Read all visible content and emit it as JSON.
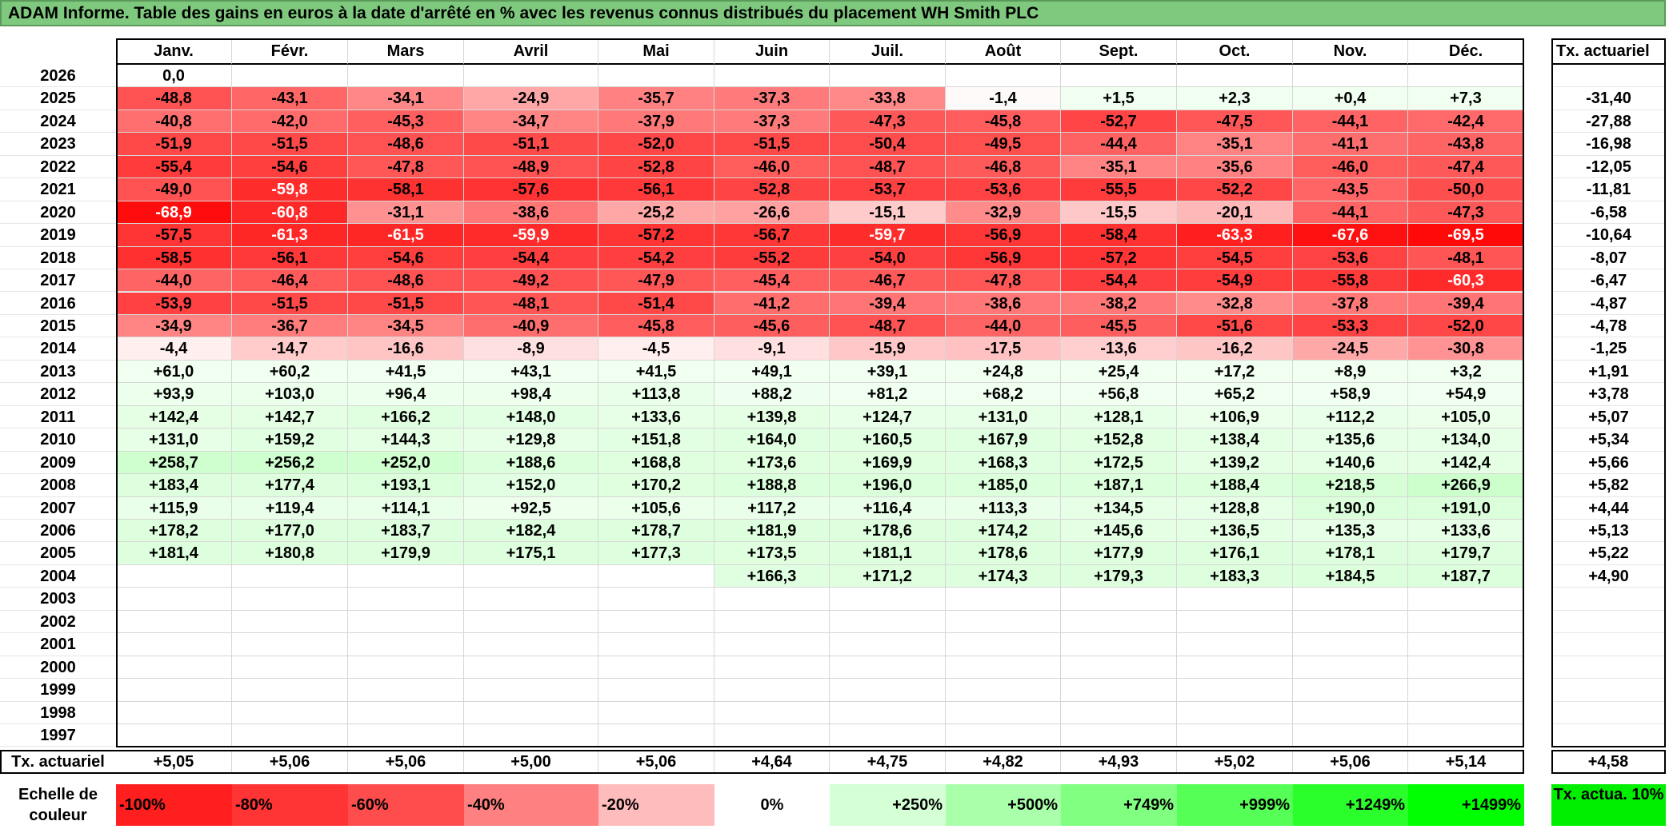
{
  "title": "ADAM Informe. Table des gains en euros à la date d'arrêté en % avec les revenus connus distribués du placement WH Smith PLC",
  "months": [
    "Janv.",
    "Févr.",
    "Mars",
    "Avril",
    "Mai",
    "Juin",
    "Juil.",
    "Août",
    "Sept.",
    "Oct.",
    "Nov.",
    "Déc."
  ],
  "actuarial_header": "Tx. actuariel",
  "rows": [
    {
      "year": "2026",
      "values": [
        "0,0",
        "",
        "",
        "",
        "",
        "",
        "",
        "",
        "",
        "",
        "",
        ""
      ],
      "actuarial": ""
    },
    {
      "year": "2025",
      "values": [
        "-48,8",
        "-43,1",
        "-34,1",
        "-24,9",
        "-35,7",
        "-37,3",
        "-33,8",
        "-1,4",
        "+1,5",
        "+2,3",
        "+0,4",
        "+7,3"
      ],
      "actuarial": "-31,40"
    },
    {
      "year": "2024",
      "values": [
        "-40,8",
        "-42,0",
        "-45,3",
        "-34,7",
        "-37,9",
        "-37,3",
        "-47,3",
        "-45,8",
        "-52,7",
        "-47,5",
        "-44,1",
        "-42,4"
      ],
      "actuarial": "-27,88"
    },
    {
      "year": "2023",
      "values": [
        "-51,9",
        "-51,5",
        "-48,6",
        "-51,1",
        "-52,0",
        "-51,5",
        "-50,4",
        "-49,5",
        "-44,4",
        "-35,1",
        "-41,1",
        "-43,8"
      ],
      "actuarial": "-16,98"
    },
    {
      "year": "2022",
      "values": [
        "-55,4",
        "-54,6",
        "-47,8",
        "-48,9",
        "-52,8",
        "-46,0",
        "-48,7",
        "-46,8",
        "-35,1",
        "-35,6",
        "-46,0",
        "-47,4"
      ],
      "actuarial": "-12,05"
    },
    {
      "year": "2021",
      "values": [
        "-49,0",
        "-59,8",
        "-58,1",
        "-57,6",
        "-56,1",
        "-52,8",
        "-53,7",
        "-53,6",
        "-55,5",
        "-52,2",
        "-43,5",
        "-50,0"
      ],
      "actuarial": "-11,81"
    },
    {
      "year": "2020",
      "values": [
        "-68,9",
        "-60,8",
        "-31,1",
        "-38,6",
        "-25,2",
        "-26,6",
        "-15,1",
        "-32,9",
        "-15,5",
        "-20,1",
        "-44,1",
        "-47,3"
      ],
      "actuarial": "-6,58"
    },
    {
      "year": "2019",
      "values": [
        "-57,5",
        "-61,3",
        "-61,5",
        "-59,9",
        "-57,2",
        "-56,7",
        "-59,7",
        "-56,9",
        "-58,4",
        "-63,3",
        "-67,6",
        "-69,5"
      ],
      "actuarial": "-10,64"
    },
    {
      "year": "2018",
      "values": [
        "-58,5",
        "-56,1",
        "-54,6",
        "-54,4",
        "-54,2",
        "-55,2",
        "-54,0",
        "-56,9",
        "-57,2",
        "-54,5",
        "-53,6",
        "-48,1"
      ],
      "actuarial": "-8,07"
    },
    {
      "year": "2017",
      "values": [
        "-44,0",
        "-46,4",
        "-48,6",
        "-49,2",
        "-47,9",
        "-45,4",
        "-46,7",
        "-47,8",
        "-54,4",
        "-54,9",
        "-55,8",
        "-60,3"
      ],
      "actuarial": "-6,47"
    },
    {
      "year": "2016",
      "values": [
        "-53,9",
        "-51,5",
        "-51,5",
        "-48,1",
        "-51,4",
        "-41,2",
        "-39,4",
        "-38,6",
        "-38,2",
        "-32,8",
        "-37,8",
        "-39,4"
      ],
      "actuarial": "-4,87"
    },
    {
      "year": "2015",
      "values": [
        "-34,9",
        "-36,7",
        "-34,5",
        "-40,9",
        "-45,8",
        "-45,6",
        "-48,7",
        "-44,0",
        "-45,5",
        "-51,6",
        "-53,3",
        "-52,0"
      ],
      "actuarial": "-4,78"
    },
    {
      "year": "2014",
      "values": [
        "-4,4",
        "-14,7",
        "-16,6",
        "-8,9",
        "-4,5",
        "-9,1",
        "-15,9",
        "-17,5",
        "-13,6",
        "-16,2",
        "-24,5",
        "-30,8"
      ],
      "actuarial": "-1,25"
    },
    {
      "year": "2013",
      "values": [
        "+61,0",
        "+60,2",
        "+41,5",
        "+43,1",
        "+41,5",
        "+49,1",
        "+39,1",
        "+24,8",
        "+25,4",
        "+17,2",
        "+8,9",
        "+3,2"
      ],
      "actuarial": "+1,91"
    },
    {
      "year": "2012",
      "values": [
        "+93,9",
        "+103,0",
        "+96,4",
        "+98,4",
        "+113,8",
        "+88,2",
        "+81,2",
        "+68,2",
        "+56,8",
        "+65,2",
        "+58,9",
        "+54,9"
      ],
      "actuarial": "+3,78"
    },
    {
      "year": "2011",
      "values": [
        "+142,4",
        "+142,7",
        "+166,2",
        "+148,0",
        "+133,6",
        "+139,8",
        "+124,7",
        "+131,0",
        "+128,1",
        "+106,9",
        "+112,2",
        "+105,0"
      ],
      "actuarial": "+5,07"
    },
    {
      "year": "2010",
      "values": [
        "+131,0",
        "+159,2",
        "+144,3",
        "+129,8",
        "+151,8",
        "+164,0",
        "+160,5",
        "+167,9",
        "+152,8",
        "+138,4",
        "+135,6",
        "+134,0"
      ],
      "actuarial": "+5,34"
    },
    {
      "year": "2009",
      "values": [
        "+258,7",
        "+256,2",
        "+252,0",
        "+188,6",
        "+168,8",
        "+173,6",
        "+169,9",
        "+168,3",
        "+172,5",
        "+139,2",
        "+140,6",
        "+142,4"
      ],
      "actuarial": "+5,66"
    },
    {
      "year": "2008",
      "values": [
        "+183,4",
        "+177,4",
        "+193,1",
        "+152,0",
        "+170,2",
        "+188,8",
        "+196,0",
        "+185,0",
        "+187,1",
        "+188,4",
        "+218,5",
        "+266,9"
      ],
      "actuarial": "+5,82"
    },
    {
      "year": "2007",
      "values": [
        "+115,9",
        "+119,4",
        "+114,1",
        "+92,5",
        "+105,6",
        "+117,2",
        "+116,4",
        "+113,3",
        "+134,5",
        "+128,8",
        "+190,0",
        "+191,0"
      ],
      "actuarial": "+4,44"
    },
    {
      "year": "2006",
      "values": [
        "+178,2",
        "+177,0",
        "+183,7",
        "+182,4",
        "+178,7",
        "+181,9",
        "+178,6",
        "+174,2",
        "+145,6",
        "+136,5",
        "+135,3",
        "+133,6"
      ],
      "actuarial": "+5,13"
    },
    {
      "year": "2005",
      "values": [
        "+181,4",
        "+180,8",
        "+179,9",
        "+175,1",
        "+177,3",
        "+173,5",
        "+181,1",
        "+178,6",
        "+177,9",
        "+176,1",
        "+178,1",
        "+179,7"
      ],
      "actuarial": "+5,22"
    },
    {
      "year": "2004",
      "values": [
        "",
        "",
        "",
        "",
        "",
        "+166,3",
        "+171,2",
        "+174,3",
        "+179,3",
        "+183,3",
        "+184,5",
        "+187,7"
      ],
      "actuarial": "+4,90"
    },
    {
      "year": "2003",
      "values": [
        "",
        "",
        "",
        "",
        "",
        "",
        "",
        "",
        "",
        "",
        "",
        ""
      ],
      "actuarial": ""
    },
    {
      "year": "2002",
      "values": [
        "",
        "",
        "",
        "",
        "",
        "",
        "",
        "",
        "",
        "",
        "",
        ""
      ],
      "actuarial": ""
    },
    {
      "year": "2001",
      "values": [
        "",
        "",
        "",
        "",
        "",
        "",
        "",
        "",
        "",
        "",
        "",
        ""
      ],
      "actuarial": ""
    },
    {
      "year": "2000",
      "values": [
        "",
        "",
        "",
        "",
        "",
        "",
        "",
        "",
        "",
        "",
        "",
        ""
      ],
      "actuarial": ""
    },
    {
      "year": "1999",
      "values": [
        "",
        "",
        "",
        "",
        "",
        "",
        "",
        "",
        "",
        "",
        "",
        ""
      ],
      "actuarial": ""
    },
    {
      "year": "1998",
      "values": [
        "",
        "",
        "",
        "",
        "",
        "",
        "",
        "",
        "",
        "",
        "",
        ""
      ],
      "actuarial": ""
    },
    {
      "year": "1997",
      "values": [
        "",
        "",
        "",
        "",
        "",
        "",
        "",
        "",
        "",
        "",
        "",
        ""
      ],
      "actuarial": ""
    }
  ],
  "summary": {
    "label": "Tx. actuariel",
    "values": [
      "+5,05",
      "+5,06",
      "+5,06",
      "+5,00",
      "+5,06",
      "+4,64",
      "+4,75",
      "+4,82",
      "+4,93",
      "+5,02",
      "+5,06",
      "+5,14"
    ],
    "actuarial": "+4,58"
  },
  "scale": {
    "label": "Echelle de couleur",
    "items": [
      {
        "label": "-100%",
        "color": "#ff1f1f",
        "align": "left"
      },
      {
        "label": "-80%",
        "color": "#ff3434",
        "align": "left"
      },
      {
        "label": "-60%",
        "color": "#ff4d4d",
        "align": "left"
      },
      {
        "label": "-40%",
        "color": "#ff8080",
        "align": "left"
      },
      {
        "label": "-20%",
        "color": "#ffbcbc",
        "align": "left"
      },
      {
        "label": "0%",
        "color": "#ffffff",
        "align": "center"
      },
      {
        "label": "+250%",
        "color": "#d5ffd5",
        "align": "right"
      },
      {
        "label": "+500%",
        "color": "#aaffaa",
        "align": "right"
      },
      {
        "label": "+749%",
        "color": "#80ff80",
        "align": "right"
      },
      {
        "label": "+999%",
        "color": "#55ff55",
        "align": "right"
      },
      {
        "label": "+1249%",
        "color": "#2bff2b",
        "align": "right"
      },
      {
        "label": "+1499%",
        "color": "#00ff00",
        "align": "right"
      }
    ],
    "actuarial_label": "Tx. actua. 10%",
    "actuarial_color": "#00ee00"
  }
}
